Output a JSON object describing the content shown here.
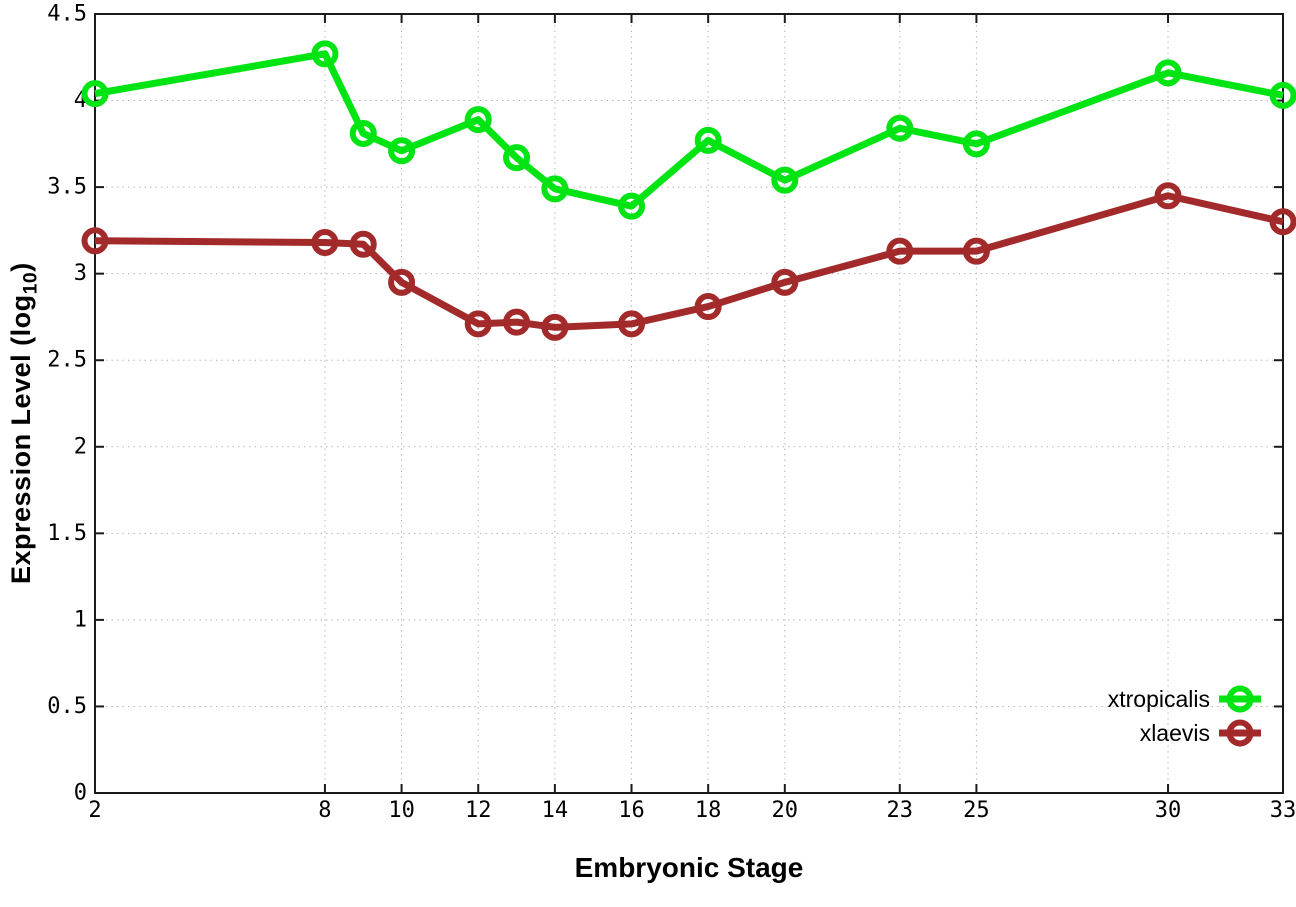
{
  "chart_data": {
    "type": "line",
    "title": "",
    "xlabel": "Embryonic Stage",
    "ylabel": "Expression Level (log10)",
    "ylabel_parts": {
      "main": "Expression Level (log",
      "sub": "10",
      "end": ")"
    },
    "x": [
      2,
      8,
      9,
      10,
      12,
      13,
      14,
      16,
      18,
      20,
      23,
      25,
      30,
      33
    ],
    "series": [
      {
        "name": "xtropicalis",
        "color": "#00e414",
        "values": [
          4.04,
          4.27,
          3.81,
          3.71,
          3.89,
          3.67,
          3.49,
          3.39,
          3.77,
          3.54,
          3.84,
          3.75,
          4.16,
          4.03
        ]
      },
      {
        "name": "xlaevis",
        "color": "#a32a2a",
        "values": [
          3.19,
          3.18,
          3.17,
          2.95,
          2.71,
          2.72,
          2.69,
          2.71,
          2.81,
          2.95,
          3.13,
          3.13,
          3.45,
          3.3
        ]
      }
    ],
    "xlim": [
      2,
      33
    ],
    "ylim": [
      0,
      4.5
    ],
    "xticks": [
      2,
      8,
      10,
      12,
      14,
      16,
      18,
      20,
      23,
      25,
      30,
      33
    ],
    "xtick_labels": [
      "2",
      "8",
      "10",
      "12",
      "14",
      "16",
      "18",
      "20",
      "23",
      "25",
      "30",
      "33"
    ],
    "yticks": [
      0,
      0.5,
      1,
      1.5,
      2,
      2.5,
      3,
      3.5,
      4,
      4.5
    ],
    "ytick_labels": [
      "0",
      "0.5",
      "1",
      "1.5",
      "2",
      "2.5",
      "3",
      "3.5",
      "4",
      "4.5"
    ],
    "grid": true,
    "marker": "open-circle",
    "legend_position": "inside-bottom-right",
    "colors": {
      "background": "#ffffff",
      "border": "#1a1a1a",
      "grid": "#b8b8b8",
      "text": "#000000"
    }
  }
}
